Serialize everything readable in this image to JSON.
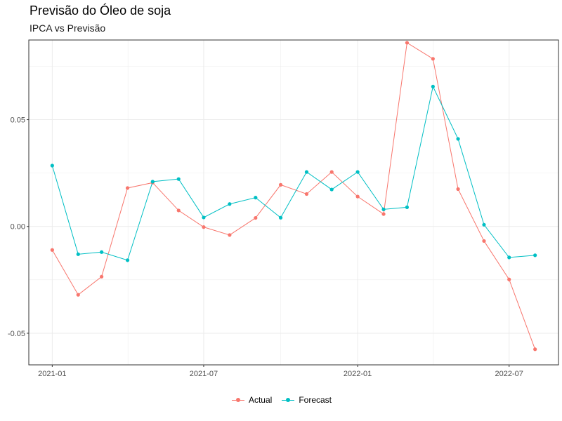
{
  "title": "Previsão do Óleo de soja",
  "subtitle": "IPCA vs Previsão",
  "colors": {
    "actual": "#F8766D",
    "forecast": "#00BFC4",
    "grid": "#ebebeb",
    "panel_border": "#333333"
  },
  "chart_data": {
    "type": "line",
    "title": "Previsão do Óleo de soja",
    "subtitle": "IPCA vs Previsão",
    "x": [
      "2021-01",
      "2021-02",
      "2021-03",
      "2021-04",
      "2021-05",
      "2021-06",
      "2021-07",
      "2021-08",
      "2021-09",
      "2021-10",
      "2021-11",
      "2021-12",
      "2022-01",
      "2022-02",
      "2022-03",
      "2022-04",
      "2022-05",
      "2022-06",
      "2022-07",
      "2022-08"
    ],
    "x_ticks": [
      "2021-01",
      "2021-07",
      "2022-01",
      "2022-07"
    ],
    "y_ticks": [
      -0.05,
      0.0,
      0.05
    ],
    "y_tick_labels": [
      "-0.05",
      "0.00",
      "0.05"
    ],
    "ylim": [
      -0.0648,
      0.0873
    ],
    "xlim": [
      "2020-12-04",
      "2022-08-29"
    ],
    "grid": true,
    "legend_position": "bottom",
    "series": [
      {
        "name": "Actual",
        "color": "#F8766D",
        "values": [
          -0.011,
          -0.032,
          -0.0235,
          0.018,
          0.0205,
          0.0075,
          -0.0003,
          -0.004,
          0.004,
          0.0195,
          0.0152,
          0.0255,
          0.014,
          0.0058,
          0.086,
          0.0785,
          0.0175,
          -0.0068,
          -0.0248,
          -0.0575
        ]
      },
      {
        "name": "Forecast",
        "color": "#00BFC4",
        "values": [
          0.0285,
          -0.013,
          -0.012,
          -0.0158,
          0.021,
          0.0222,
          0.0042,
          0.0105,
          0.0135,
          0.0041,
          0.0255,
          0.0173,
          0.0255,
          0.008,
          0.009,
          0.0655,
          0.041,
          0.0008,
          -0.0145,
          -0.0135
        ]
      }
    ]
  }
}
